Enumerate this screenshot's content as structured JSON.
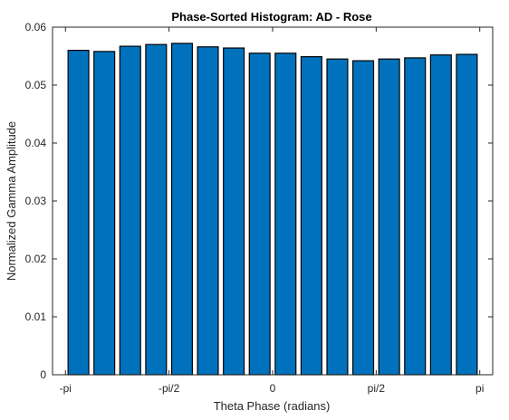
{
  "chart_data": {
    "type": "bar",
    "title": "Phase-Sorted Histogram: AD - Rose",
    "xlabel": "Theta Phase (radians)",
    "ylabel": "Normalized Gamma Amplitude",
    "xlim": [
      -3.3379,
      3.3379
    ],
    "ylim": [
      0,
      0.06
    ],
    "bar_width_fraction": 0.8,
    "x_ticks": [
      {
        "value": -3.14159,
        "label": "-pi"
      },
      {
        "value": -1.5708,
        "label": "-pi/2"
      },
      {
        "value": 0,
        "label": "0"
      },
      {
        "value": 1.5708,
        "label": "pi/2"
      },
      {
        "value": 3.14159,
        "label": "pi"
      }
    ],
    "y_ticks": [
      {
        "value": 0,
        "label": "0"
      },
      {
        "value": 0.01,
        "label": "0.01"
      },
      {
        "value": 0.02,
        "label": "0.02"
      },
      {
        "value": 0.03,
        "label": "0.03"
      },
      {
        "value": 0.04,
        "label": "0.04"
      },
      {
        "value": 0.05,
        "label": "0.05"
      },
      {
        "value": 0.06,
        "label": "0.06"
      }
    ],
    "x": [
      -2.9452,
      -2.5525,
      -2.1598,
      -1.7671,
      -1.3744,
      -0.9817,
      -0.589,
      -0.1963,
      0.1963,
      0.589,
      0.9817,
      1.3744,
      1.7671,
      2.1598,
      2.5525,
      2.9452
    ],
    "values": [
      0.056,
      0.0558,
      0.0567,
      0.057,
      0.0572,
      0.0566,
      0.0564,
      0.0555,
      0.0555,
      0.0549,
      0.0545,
      0.0542,
      0.0545,
      0.0547,
      0.0552,
      0.0553
    ],
    "grid": false,
    "bar_color": "#0072BD",
    "edge_color": "#000000"
  }
}
